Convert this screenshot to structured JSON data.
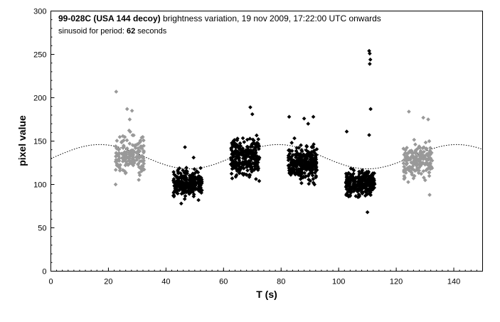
{
  "chart_data": {
    "type": "scatter",
    "title_bold": "99-028C (USA 144 decoy)",
    "title_rest": " brightness variation, 19 nov 2009, 17:22:00 UTC onwards",
    "subtitle_prefix": "sinusoid for period: ",
    "subtitle_value": "62",
    "subtitle_suffix": " seconds",
    "xlabel": "T (s)",
    "ylabel": "pixel value",
    "xlim": [
      0,
      150
    ],
    "ylim": [
      0,
      300
    ],
    "x_ticks": [
      0,
      20,
      40,
      60,
      80,
      100,
      120,
      140
    ],
    "y_ticks": [
      0,
      50,
      100,
      150,
      200,
      250,
      300
    ],
    "grid": false,
    "colors": {
      "black_series": "#000000",
      "grey_series": "#999999",
      "sinusoid": "#000000"
    },
    "sinusoid": {
      "period": 62,
      "mean": 132,
      "amplitude": 14,
      "peak_x": 17
    },
    "clusters": [
      {
        "series": "grey",
        "x_range": [
          22.5,
          32.5
        ],
        "y_center": 132,
        "y_spread": 12,
        "count": 180
      },
      {
        "series": "black",
        "x_range": [
          42.5,
          52.5
        ],
        "y_center": 101,
        "y_spread": 8,
        "count": 260
      },
      {
        "series": "black",
        "x_range": [
          62.5,
          72.5
        ],
        "y_center": 132,
        "y_spread": 12,
        "count": 260
      },
      {
        "series": "black",
        "x_range": [
          82.5,
          92.5
        ],
        "y_center": 125,
        "y_spread": 11,
        "count": 260
      },
      {
        "series": "black",
        "x_range": [
          102.5,
          112.5
        ],
        "y_center": 102,
        "y_spread": 8,
        "count": 260
      },
      {
        "series": "grey",
        "x_range": [
          122.5,
          132.5
        ],
        "y_center": 128,
        "y_spread": 11,
        "count": 180
      }
    ],
    "outliers": [
      {
        "series": "grey",
        "x": 22.7,
        "y": 207
      },
      {
        "series": "grey",
        "x": 26.5,
        "y": 187
      },
      {
        "series": "grey",
        "x": 28.2,
        "y": 185
      },
      {
        "series": "grey",
        "x": 27.4,
        "y": 175
      },
      {
        "series": "grey",
        "x": 22.5,
        "y": 100
      },
      {
        "series": "black",
        "x": 45.3,
        "y": 78
      },
      {
        "series": "black",
        "x": 46.6,
        "y": 143
      },
      {
        "series": "black",
        "x": 49.6,
        "y": 131
      },
      {
        "series": "black",
        "x": 51.3,
        "y": 82
      },
      {
        "series": "black",
        "x": 63.0,
        "y": 107
      },
      {
        "series": "black",
        "x": 69.3,
        "y": 189
      },
      {
        "series": "black",
        "x": 70.0,
        "y": 181
      },
      {
        "series": "black",
        "x": 72.4,
        "y": 104
      },
      {
        "series": "black",
        "x": 82.8,
        "y": 178
      },
      {
        "series": "black",
        "x": 88.0,
        "y": 176
      },
      {
        "series": "black",
        "x": 91.2,
        "y": 178
      },
      {
        "series": "black",
        "x": 89.4,
        "y": 170
      },
      {
        "series": "black",
        "x": 91.6,
        "y": 100
      },
      {
        "series": "black",
        "x": 102.8,
        "y": 161
      },
      {
        "series": "black",
        "x": 103.2,
        "y": 88
      },
      {
        "series": "black",
        "x": 110.0,
        "y": 68
      },
      {
        "series": "black",
        "x": 110.6,
        "y": 254
      },
      {
        "series": "black",
        "x": 110.8,
        "y": 251
      },
      {
        "series": "black",
        "x": 111.0,
        "y": 244
      },
      {
        "series": "black",
        "x": 110.8,
        "y": 239
      },
      {
        "series": "black",
        "x": 111.1,
        "y": 187
      },
      {
        "series": "black",
        "x": 110.6,
        "y": 157
      },
      {
        "series": "grey",
        "x": 124.4,
        "y": 184
      },
      {
        "series": "grey",
        "x": 129.4,
        "y": 177
      },
      {
        "series": "grey",
        "x": 131.1,
        "y": 175
      },
      {
        "series": "grey",
        "x": 131.6,
        "y": 88
      }
    ]
  }
}
